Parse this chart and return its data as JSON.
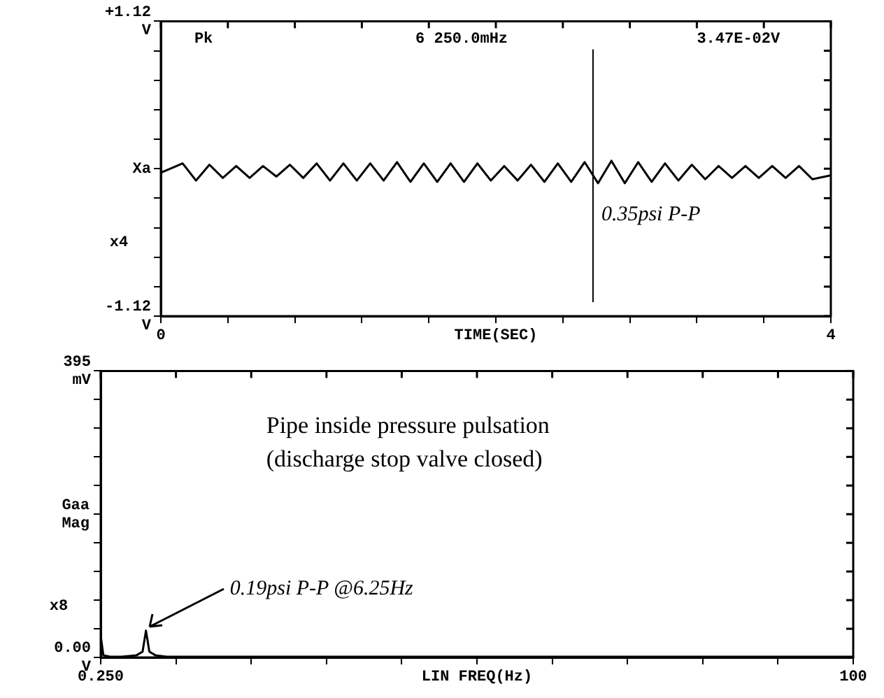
{
  "chart_data": [
    {
      "type": "line",
      "xlabel": "TIME(SEC)",
      "x": [
        0,
        0.13,
        0.21,
        0.29,
        0.37,
        0.45,
        0.53,
        0.61,
        0.69,
        0.77,
        0.85,
        0.93,
        1.01,
        1.09,
        1.17,
        1.25,
        1.33,
        1.41,
        1.49,
        1.57,
        1.65,
        1.73,
        1.81,
        1.89,
        1.97,
        2.05,
        2.13,
        2.21,
        2.29,
        2.37,
        2.45,
        2.53,
        2.61,
        2.69,
        2.77,
        2.85,
        2.93,
        3.01,
        3.09,
        3.17,
        3.25,
        3.33,
        3.41,
        3.49,
        3.57,
        3.65,
        3.73,
        3.81,
        3.89,
        4
      ],
      "series": [
        {
          "color": "#000000",
          "values": [
            -0.03,
            0.04,
            -0.09,
            0.03,
            -0.07,
            0.02,
            -0.07,
            0.02,
            -0.06,
            0.03,
            -0.07,
            0.04,
            -0.09,
            0.04,
            -0.09,
            0.04,
            -0.09,
            0.05,
            -0.1,
            0.04,
            -0.1,
            0.04,
            -0.1,
            0.04,
            -0.09,
            0.02,
            -0.09,
            0.03,
            -0.1,
            0.04,
            -0.1,
            0.05,
            -0.11,
            0.06,
            -0.11,
            0.05,
            -0.1,
            0.04,
            -0.09,
            0.03,
            -0.08,
            0.02,
            -0.07,
            0.02,
            -0.07,
            0.02,
            -0.07,
            0.02,
            -0.08,
            -0.05
          ]
        }
      ],
      "xlim": [
        0,
        4
      ],
      "xticks": [
        0,
        {
          "value": 0.4,
          "label": null
        },
        {
          "value": 0.8,
          "label": null
        },
        {
          "value": 1.2,
          "label": null
        },
        {
          "value": 1.6,
          "label": null
        },
        {
          "value": 2,
          "label": null
        },
        {
          "value": 2.4,
          "label": null
        },
        {
          "value": 2.8,
          "label": null
        },
        {
          "value": 3.2,
          "label": null
        },
        {
          "value": 3.6,
          "label": null
        },
        4
      ],
      "ylim": [
        -1.12,
        1.12
      ],
      "yticks": [
        {
          "value": 1.12,
          "label": "+1.12 V"
        },
        {
          "value": 0.896,
          "label": null
        },
        {
          "value": 0.672,
          "label": null
        },
        {
          "value": 0.448,
          "label": null
        },
        {
          "value": 0.224,
          "label": null
        },
        {
          "value": 0,
          "label": "Xa"
        },
        {
          "value": -0.224,
          "label": null
        },
        {
          "value": -0.448,
          "label": null
        },
        {
          "value": -0.672,
          "label": null
        },
        {
          "value": -0.896,
          "label": null
        },
        {
          "value": -1.12,
          "label": "-1.12 V"
        }
      ],
      "ref_lines": [
        {
          "axis": "x",
          "value": 2.58
        }
      ],
      "annotations": [
        "Pk",
        "6 250.0mHz",
        "3.47E-02V",
        "x4",
        {
          "text": "0.35psi P-P",
          "x": 2.58,
          "y": -0.35
        }
      ],
      "marker": "none",
      "line_style": "solid",
      "grid": false,
      "legend": false
    },
    {
      "type": "line",
      "title": "Pipe inside pressure pulsation\n(discharge stop valve closed)",
      "xlabel": "LIN FREQ(Hz)",
      "ylabel": "Gaa Mag",
      "x": [
        0.25,
        0.6,
        1.5,
        3,
        5,
        5.8,
        6.25,
        6.7,
        7.5,
        9,
        12,
        20,
        40,
        60,
        80,
        100
      ],
      "series": [
        {
          "color": "#000000",
          "values": [
            30,
            3,
            1,
            1,
            3,
            8,
            37,
            8,
            3,
            1,
            1,
            1,
            1,
            1,
            1,
            1
          ]
        }
      ],
      "xlim": [
        0.25,
        100
      ],
      "xticks": [
        {
          "value": 0.25,
          "label": "0.250"
        },
        {
          "value": 10.225,
          "label": null
        },
        {
          "value": 20.2,
          "label": null
        },
        {
          "value": 30.175,
          "label": null
        },
        {
          "value": 40.15,
          "label": null
        },
        {
          "value": 50.125,
          "label": null
        },
        {
          "value": 60.1,
          "label": null
        },
        {
          "value": 70.075,
          "label": null
        },
        {
          "value": 80.05,
          "label": null
        },
        {
          "value": 90.025,
          "label": null
        },
        100
      ],
      "ylim": [
        0,
        395
      ],
      "yticks": [
        {
          "value": 0,
          "label": "0.00 V"
        },
        {
          "value": 39.5,
          "label": null
        },
        {
          "value": 79,
          "label": null
        },
        {
          "value": 118.5,
          "label": null
        },
        {
          "value": 158,
          "label": null
        },
        {
          "value": 197.5,
          "label": null
        },
        {
          "value": 237,
          "label": null
        },
        {
          "value": 276.5,
          "label": null
        },
        {
          "value": 316,
          "label": null
        },
        {
          "value": 355.5,
          "label": null
        },
        {
          "value": 395,
          "label": "395 mV"
        }
      ],
      "annotations": [
        "x8",
        {
          "text": "0.19psi P-P @6.25Hz",
          "x": 6.25,
          "y": 37
        }
      ],
      "marker": "none",
      "line_style": "solid",
      "grid": false,
      "legend": false
    }
  ]
}
